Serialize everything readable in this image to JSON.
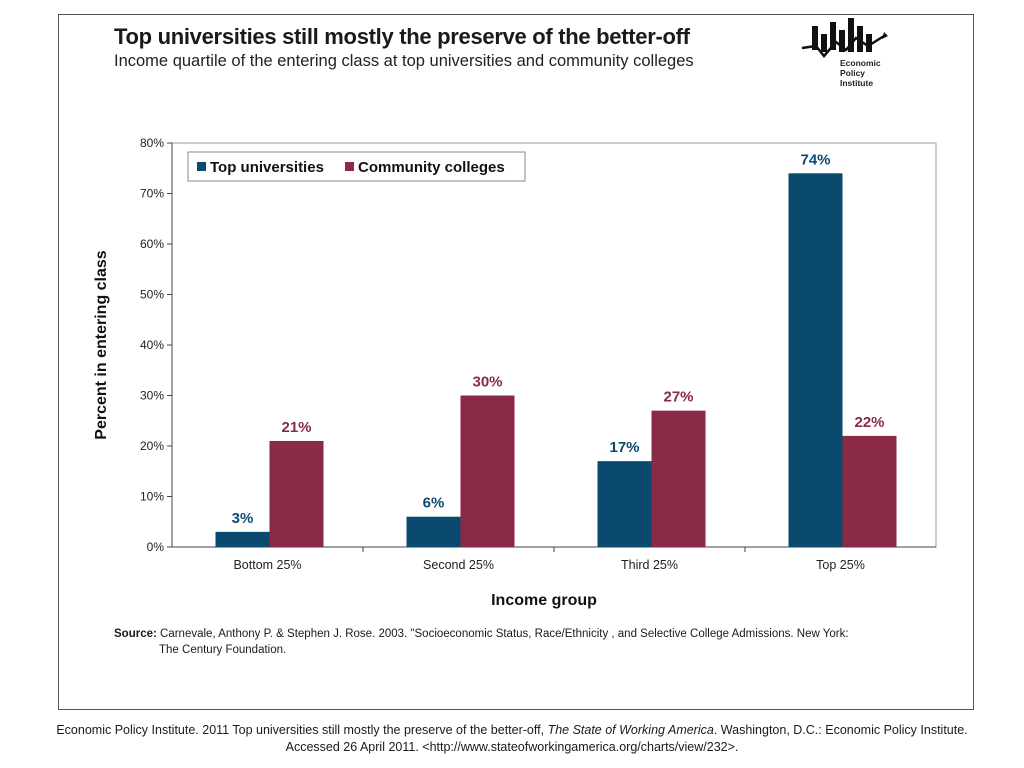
{
  "title": "Top universities still mostly the preserve of the better-off",
  "subtitle": "Income quartile of the entering class at top universities and community colleges",
  "logo": {
    "lines": [
      "Economic",
      "Policy",
      "Institute"
    ]
  },
  "source": {
    "label": "Source:",
    "text_line1": "Carnevale, Anthony P. & Stephen J. Rose. 2003. \"Socioeconomic Status, Race/Ethnicity , and Selective College Admissions. New York:",
    "text_line2": "The Century Foundation."
  },
  "citation": {
    "part1": "Economic Policy Institute. 2011 Top universities still mostly the preserve of the better-off,",
    "italic": "The State of Working America",
    "part2": ".  Washington, D.C.: Economic Policy Institute.",
    "line2": "Accessed 26 April 2011.  <http://www.stateofworkingamerica.org/charts/view/232>."
  },
  "colors": {
    "top_universities": "#0b4a6f",
    "community_colleges": "#8a2a44",
    "axis": "#444444"
  },
  "chart_data": {
    "type": "bar",
    "title": "Top universities still mostly the preserve of the better-off",
    "subtitle": "Income quartile of the entering class at top universities and community colleges",
    "xlabel": "Income group",
    "ylabel": "Percent in entering class",
    "categories": [
      "Bottom 25%",
      "Second 25%",
      "Third 25%",
      "Top 25%"
    ],
    "series": [
      {
        "name": "Top universities",
        "values": [
          3,
          6,
          17,
          74
        ],
        "labels": [
          "3%",
          "6%",
          "17%",
          "74%"
        ]
      },
      {
        "name": "Community colleges",
        "values": [
          21,
          30,
          27,
          22
        ],
        "labels": [
          "21%",
          "30%",
          "27%",
          "22%"
        ]
      }
    ],
    "ylim": [
      0,
      80
    ],
    "yticks": [
      "0%",
      "10%",
      "20%",
      "30%",
      "40%",
      "50%",
      "60%",
      "70%",
      "80%"
    ],
    "legend": "top-left",
    "grid": false
  }
}
